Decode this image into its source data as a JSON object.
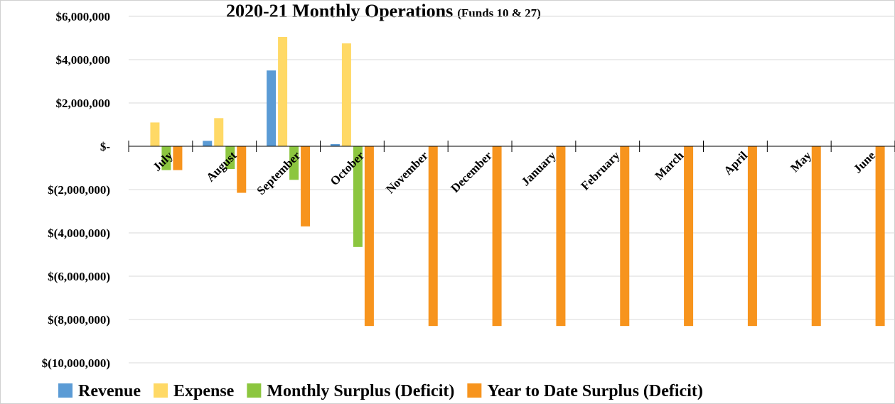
{
  "chart_data": {
    "type": "bar",
    "title": "2020-21 Monthly Operations",
    "subtitle": "(Funds 10 & 27)",
    "categories": [
      "July",
      "August",
      "September",
      "October",
      "November",
      "December",
      "January",
      "February",
      "March",
      "April",
      "May",
      "June"
    ],
    "series": [
      {
        "name": "Revenue",
        "color": "#5b9bd5",
        "values": [
          0,
          250000,
          3500000,
          100000,
          null,
          null,
          null,
          null,
          null,
          null,
          null,
          null
        ]
      },
      {
        "name": "Expense",
        "color": "#ffd966",
        "values": [
          1100000,
          1300000,
          5050000,
          4750000,
          null,
          null,
          null,
          null,
          null,
          null,
          null,
          null
        ]
      },
      {
        "name": "Monthly Surplus (Deficit)",
        "color": "#8cc63f",
        "values": [
          -1100000,
          -1050000,
          -1550000,
          -4650000,
          null,
          null,
          null,
          null,
          null,
          null,
          null,
          null
        ]
      },
      {
        "name": "Year to Date Surplus (Deficit)",
        "color": "#f7941d",
        "values": [
          -1100000,
          -2150000,
          -3700000,
          -8300000,
          -8300000,
          -8300000,
          -8300000,
          -8300000,
          -8300000,
          -8300000,
          -8300000,
          -8300000
        ]
      }
    ],
    "ylim": [
      -10000000,
      6000000
    ],
    "yticks": [
      {
        "value": 6000000,
        "label": "$6,000,000"
      },
      {
        "value": 4000000,
        "label": "$4,000,000"
      },
      {
        "value": 2000000,
        "label": "$2,000,000"
      },
      {
        "value": 0,
        "label": "$-"
      },
      {
        "value": -2000000,
        "label": "$(2,000,000)"
      },
      {
        "value": -4000000,
        "label": "$(4,000,000)"
      },
      {
        "value": -6000000,
        "label": "$(6,000,000)"
      },
      {
        "value": -8000000,
        "label": "$(8,000,000)"
      },
      {
        "value": -10000000,
        "label": "$(10,000,000)"
      }
    ],
    "grid": true,
    "legend": "bottom"
  }
}
